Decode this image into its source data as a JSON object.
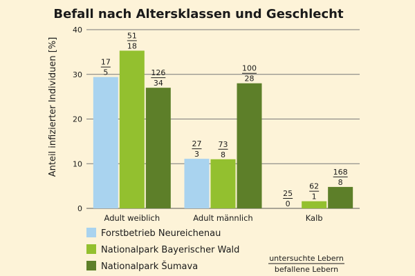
{
  "chart_data": {
    "type": "bar",
    "title": "Befall nach Altersklassen und Geschlecht",
    "ylabel": "Anteil infizierter Individuen [%]",
    "xlabel": "",
    "ylim": [
      0,
      40
    ],
    "yticks": [
      0,
      10,
      20,
      30,
      40
    ],
    "grid": true,
    "legend_position": "bottom-left",
    "categories": [
      "Adult weiblich",
      "Adult männlich",
      "Kalb"
    ],
    "series": [
      {
        "name": "Forstbetrieb Neureichenau",
        "color": "#a9d3ef",
        "values": [
          29.4,
          11.1,
          0
        ],
        "examined": [
          "17",
          "27",
          "25"
        ],
        "infected": [
          "5",
          "3",
          "0"
        ]
      },
      {
        "name": "Nationalpark Bayerischer Wald",
        "color": "#93c02f",
        "values": [
          35.3,
          11.0,
          1.6
        ],
        "examined": [
          "51",
          "73",
          "62"
        ],
        "infected": [
          "18",
          "8",
          "1"
        ]
      },
      {
        "name": "Nationalpark Šumava",
        "color": "#5d7f29",
        "values": [
          27.0,
          28.0,
          4.8
        ],
        "examined": [
          "126",
          "100",
          "168"
        ],
        "infected": [
          "34",
          "28",
          "8"
        ]
      }
    ],
    "note": {
      "numerator": "untersuchte Lebern",
      "denominator": "befallene Lebern"
    }
  }
}
